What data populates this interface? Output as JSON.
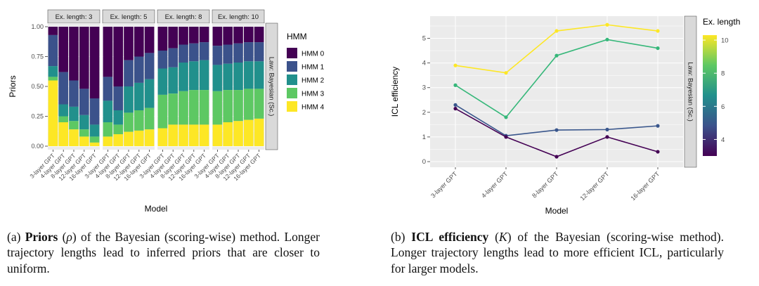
{
  "captions": {
    "a": {
      "prefix": "(a) ",
      "bold": "Priors",
      "mid": " (",
      "symbol": "ρ",
      "suffix": ") of the Bayesian (scoring-wise) method. Longer trajectory lengths lead to inferred priors that are closer to uniform."
    },
    "b": {
      "prefix": "(b) ",
      "bold": "ICL efficiency",
      "mid": " (",
      "symbol": "K",
      "suffix": ") of the Bayesian (scoring-wise method). Longer trajectory lengths lead to more efficient ICL, particularly for larger models."
    }
  },
  "chart_data": [
    {
      "type": "bar",
      "stacked": true,
      "ylabel": "Priors",
      "xlabel": "Model",
      "ylim": [
        0,
        1
      ],
      "yticks": [
        "0.00",
        "0.25",
        "0.50",
        "0.75",
        "1.00"
      ],
      "categories": [
        "3-layer GPT",
        "4-layer GPT",
        "8-layer GPT",
        "12-layer GPT",
        "16-layer GPT"
      ],
      "legend_title": "HMM",
      "series_names": [
        "HMM 0",
        "HMM 1",
        "HMM 2",
        "HMM 3",
        "HMM 4"
      ],
      "series_colors": [
        "#440154",
        "#3B528B",
        "#21908C",
        "#5DC863",
        "#FDE725"
      ],
      "right_strip_label": "Law: Bayesian (Sc.)",
      "panel_bg": "#EBEBEB",
      "strip_bg": "#D9D9D9",
      "facets": [
        {
          "label": "Ex. length: 3",
          "bars": [
            [
              0.07,
              0.26,
              0.09,
              0.03,
              0.55
            ],
            [
              0.38,
              0.27,
              0.1,
              0.05,
              0.2
            ],
            [
              0.45,
              0.22,
              0.12,
              0.07,
              0.14
            ],
            [
              0.52,
              0.22,
              0.12,
              0.06,
              0.08
            ],
            [
              0.6,
              0.22,
              0.1,
              0.05,
              0.03
            ]
          ]
        },
        {
          "label": "Ex. length: 5",
          "bars": [
            [
              0.42,
              0.2,
              0.18,
              0.12,
              0.08
            ],
            [
              0.5,
              0.2,
              0.12,
              0.08,
              0.1
            ],
            [
              0.28,
              0.22,
              0.22,
              0.16,
              0.12
            ],
            [
              0.25,
              0.22,
              0.23,
              0.17,
              0.13
            ],
            [
              0.22,
              0.22,
              0.24,
              0.18,
              0.14
            ]
          ]
        },
        {
          "label": "Ex. length: 8",
          "bars": [
            [
              0.2,
              0.15,
              0.22,
              0.28,
              0.15
            ],
            [
              0.18,
              0.16,
              0.22,
              0.26,
              0.18
            ],
            [
              0.15,
              0.15,
              0.24,
              0.28,
              0.18
            ],
            [
              0.14,
              0.15,
              0.24,
              0.29,
              0.18
            ],
            [
              0.13,
              0.15,
              0.25,
              0.29,
              0.18
            ]
          ]
        },
        {
          "label": "Ex. length: 10",
          "bars": [
            [
              0.16,
              0.16,
              0.22,
              0.28,
              0.18
            ],
            [
              0.15,
              0.16,
              0.22,
              0.27,
              0.2
            ],
            [
              0.14,
              0.16,
              0.23,
              0.26,
              0.21
            ],
            [
              0.13,
              0.16,
              0.23,
              0.26,
              0.22
            ],
            [
              0.13,
              0.16,
              0.23,
              0.25,
              0.23
            ]
          ]
        }
      ]
    },
    {
      "type": "line",
      "ylabel": "ICL efficiency",
      "xlabel": "Model",
      "ylim": [
        0,
        5.7
      ],
      "yticks": [
        0,
        1,
        2,
        3,
        4,
        5
      ],
      "categories": [
        "3-layer GPT",
        "4-layer GPT",
        "8-layer GPT",
        "12-layer GPT",
        "16-layer GPT"
      ],
      "right_strip_label": "Law: Bayesian (Sc.)",
      "panel_bg": "#EBEBEB",
      "strip_bg": "#D9D9D9",
      "legend": {
        "title": "Ex. length",
        "style": "colorbar",
        "ticks": [
          4,
          6,
          8,
          10
        ],
        "range": [
          3,
          10.3
        ],
        "gradient_colors": [
          "#440154",
          "#3B528B",
          "#21908C",
          "#5DC863",
          "#FDE725"
        ]
      },
      "series": [
        {
          "name": "Ex. length 10",
          "color": "#FDE725",
          "values": [
            3.9,
            3.6,
            5.3,
            5.55,
            5.3
          ]
        },
        {
          "name": "Ex. length 8",
          "color": "#35B779",
          "values": [
            3.1,
            1.8,
            4.3,
            4.95,
            4.6
          ]
        },
        {
          "name": "Ex. length 5",
          "color": "#39568C",
          "values": [
            2.3,
            1.05,
            1.28,
            1.3,
            1.45
          ]
        },
        {
          "name": "Ex. length 3",
          "color": "#440154",
          "values": [
            2.15,
            1.0,
            0.2,
            1.0,
            0.4
          ]
        }
      ]
    }
  ]
}
